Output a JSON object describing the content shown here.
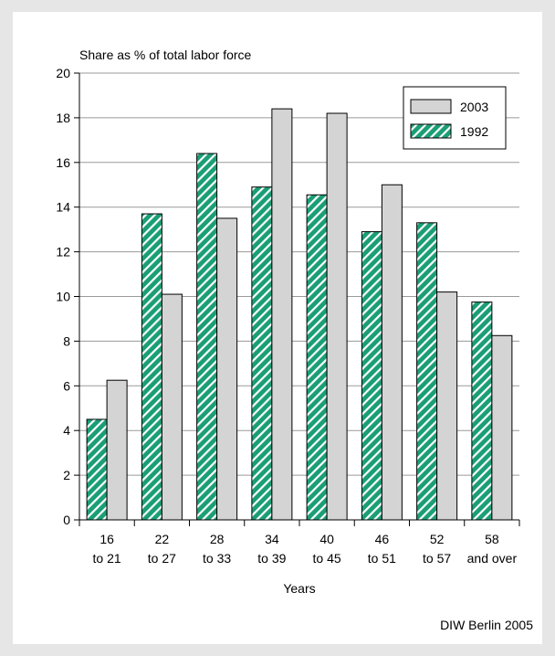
{
  "chart_data": {
    "type": "bar",
    "ylabel": "Share as % of total labor force",
    "xlabel": "Years",
    "ylim": [
      0,
      20
    ],
    "yticks": [
      0,
      2,
      4,
      6,
      8,
      10,
      12,
      14,
      16,
      18,
      20
    ],
    "categories": [
      [
        "16",
        "to  21"
      ],
      [
        "22",
        "to 27"
      ],
      [
        "28",
        "to 33"
      ],
      [
        "34",
        "to 39"
      ],
      [
        "40",
        "to 45"
      ],
      [
        "46",
        "to 51"
      ],
      [
        "52",
        "to 57"
      ],
      [
        "58",
        "and over"
      ]
    ],
    "series": [
      {
        "name": "1992",
        "values": [
          4.5,
          13.7,
          16.4,
          14.9,
          14.55,
          12.9,
          13.3,
          9.75
        ],
        "color": "#1a9e76",
        "pattern": "diagonal-hatch"
      },
      {
        "name": "2003",
        "values": [
          6.25,
          10.1,
          13.5,
          18.4,
          18.2,
          15.0,
          10.2,
          8.25
        ],
        "color": "#d4d4d4",
        "pattern": "solid"
      }
    ],
    "legend": {
      "placement": "top-right",
      "order": [
        "2003",
        "1992"
      ]
    },
    "grid": true
  },
  "source": "DIW Berlin 2005"
}
